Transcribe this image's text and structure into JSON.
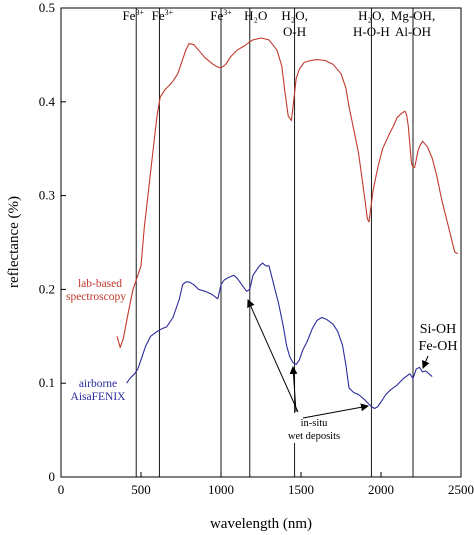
{
  "chart_data": {
    "type": "line",
    "xlabel": "wavelength (nm)",
    "ylabel": "reflectance (%)",
    "xlim": [
      0,
      2500
    ],
    "ylim": [
      0,
      0.5
    ],
    "x_ticks": [
      "0",
      "500",
      "1000",
      "1500",
      "2000",
      "2500"
    ],
    "y_ticks": [
      "0",
      "0.1",
      "0.2",
      "0.3",
      "0.4",
      "0.5"
    ],
    "grid": false,
    "absorption_bands": [
      {
        "x": 470,
        "label_main": "Fe",
        "label_sup": "3+"
      },
      {
        "x": 615,
        "label_main": "Fe",
        "label_sup": "3+"
      },
      {
        "x": 1000,
        "label_main": "Fe",
        "label_sup": "3+"
      },
      {
        "x": 1180,
        "label_main": "H₂O",
        "label_sup": ""
      },
      {
        "x": 1460,
        "label_main": "H₂O,",
        "label_line2": "O-H",
        "label_sup": ""
      },
      {
        "x": 1940,
        "label_main": "H₂O,",
        "label_line2": "H-O-H",
        "label_sup": ""
      },
      {
        "x": 2200,
        "label_main": "Mg-OH,",
        "label_line2": "Al-OH",
        "label_sup": ""
      }
    ],
    "series": [
      {
        "name": "lab-based spectroscopy",
        "label_lines": [
          "lab-based",
          "spectroscopy"
        ],
        "color": "#c0392b",
        "x": [
          350,
          370,
          390,
          420,
          450,
          480,
          500,
          520,
          550,
          580,
          600,
          620,
          650,
          680,
          700,
          730,
          760,
          780,
          800,
          830,
          860,
          900,
          950,
          980,
          1000,
          1030,
          1060,
          1100,
          1150,
          1180,
          1200,
          1250,
          1300,
          1350,
          1380,
          1400,
          1420,
          1440,
          1455,
          1470,
          1490,
          1520,
          1560,
          1600,
          1650,
          1700,
          1750,
          1780,
          1800,
          1830,
          1860,
          1880,
          1900,
          1915,
          1925,
          1935,
          1950,
          1980,
          2010,
          2050,
          2080,
          2100,
          2130,
          2150,
          2160,
          2170,
          2180,
          2190,
          2200,
          2210,
          2220,
          2230,
          2240,
          2260,
          2290,
          2320,
          2350,
          2380,
          2420,
          2460,
          2480
        ],
        "y": [
          0.15,
          0.138,
          0.148,
          0.175,
          0.2,
          0.215,
          0.225,
          0.265,
          0.31,
          0.355,
          0.385,
          0.405,
          0.413,
          0.418,
          0.422,
          0.43,
          0.445,
          0.455,
          0.462,
          0.461,
          0.455,
          0.447,
          0.44,
          0.437,
          0.436,
          0.44,
          0.448,
          0.455,
          0.46,
          0.464,
          0.466,
          0.468,
          0.466,
          0.455,
          0.438,
          0.41,
          0.385,
          0.38,
          0.402,
          0.425,
          0.435,
          0.442,
          0.444,
          0.445,
          0.444,
          0.44,
          0.43,
          0.415,
          0.395,
          0.37,
          0.345,
          0.32,
          0.295,
          0.275,
          0.272,
          0.285,
          0.305,
          0.33,
          0.35,
          0.365,
          0.375,
          0.383,
          0.388,
          0.39,
          0.386,
          0.375,
          0.355,
          0.335,
          0.33,
          0.33,
          0.338,
          0.347,
          0.352,
          0.358,
          0.352,
          0.34,
          0.32,
          0.295,
          0.268,
          0.24,
          0.238
        ]
      },
      {
        "name": "airborne AisaFENIX",
        "label_lines": [
          "airborne",
          "AisaFENIX"
        ],
        "color": "#2c2c9c",
        "x": [
          410,
          430,
          460,
          480,
          500,
          530,
          560,
          600,
          630,
          660,
          700,
          740,
          760,
          780,
          800,
          830,
          860,
          900,
          940,
          980,
          1000,
          1020,
          1050,
          1080,
          1100,
          1130,
          1160,
          1180,
          1200,
          1220,
          1240,
          1260,
          1280,
          1300,
          1330,
          1360,
          1390,
          1410,
          1430,
          1450,
          1470,
          1490,
          1510,
          1540,
          1570,
          1600,
          1630,
          1660,
          1700,
          1730,
          1760,
          1780,
          1800,
          1830,
          1860,
          1900,
          1940,
          1960,
          1980,
          2000,
          2030,
          2060,
          2100,
          2140,
          2180,
          2200,
          2220,
          2240,
          2260,
          2280,
          2300,
          2320
        ],
        "y": [
          0.1,
          0.105,
          0.11,
          0.115,
          0.125,
          0.14,
          0.15,
          0.155,
          0.158,
          0.16,
          0.17,
          0.19,
          0.205,
          0.208,
          0.208,
          0.205,
          0.2,
          0.198,
          0.195,
          0.19,
          0.205,
          0.21,
          0.213,
          0.215,
          0.212,
          0.205,
          0.198,
          0.2,
          0.215,
          0.22,
          0.225,
          0.228,
          0.225,
          0.225,
          0.205,
          0.185,
          0.16,
          0.14,
          0.128,
          0.122,
          0.12,
          0.125,
          0.135,
          0.145,
          0.158,
          0.167,
          0.17,
          0.168,
          0.163,
          0.155,
          0.14,
          0.12,
          0.095,
          0.09,
          0.088,
          0.082,
          0.075,
          0.073,
          0.075,
          0.08,
          0.088,
          0.093,
          0.098,
          0.105,
          0.11,
          0.105,
          0.115,
          0.117,
          0.112,
          0.113,
          0.11,
          0.107
        ]
      }
    ],
    "annotations": {
      "in_situ_label": [
        "in-situ",
        "wet deposits"
      ],
      "si_oh_label": [
        "Si-OH",
        "Fe-OH"
      ]
    }
  }
}
